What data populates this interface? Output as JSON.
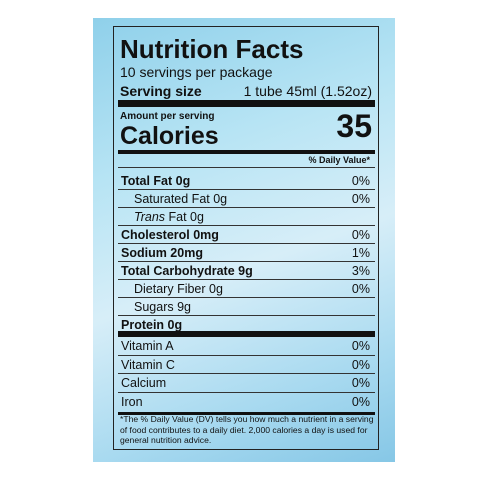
{
  "header": {
    "title": "Nutrition Facts",
    "servings": "10 servings per package",
    "serving_size_label": "Serving size",
    "serving_size_value": "1 tube 45ml (1.52oz)"
  },
  "calories": {
    "heading": "Amount per serving",
    "label": "Calories",
    "value": "35"
  },
  "daily_value_heading": "% Daily Value*",
  "nutrients": [
    {
      "label": "Total Fat 0g",
      "dv": "0%",
      "bold": true
    },
    {
      "label": "Saturated Fat 0g",
      "dv": "0%",
      "indent": true
    },
    {
      "italic": "Trans",
      "label": "Fat 0g",
      "indent": true
    },
    {
      "label": "Cholesterol 0mg",
      "dv": "0%",
      "bold": true
    },
    {
      "label": "Sodium 20mg",
      "dv": "1%",
      "bold": true
    },
    {
      "label": "Total Carbohydrate 9g",
      "dv": "3%",
      "bold": true
    },
    {
      "label": "Dietary Fiber 0g",
      "dv": "0%",
      "indent": true
    },
    {
      "label": "Sugars 9g",
      "indent": true
    },
    {
      "label": "Protein 0g",
      "bold": true
    }
  ],
  "vitamins": [
    {
      "label": "Vitamin A",
      "dv": "0%"
    },
    {
      "label": "Vitamin C",
      "dv": "0%"
    },
    {
      "label": "Calcium",
      "dv": "0%"
    },
    {
      "label": "Iron",
      "dv": "0%"
    }
  ],
  "footnote": "*The % Daily Value (DV) tells you how much a nutrient in a serving of food contributes to a daily diet. 2,000 calories a day is used for general nutrition advice."
}
